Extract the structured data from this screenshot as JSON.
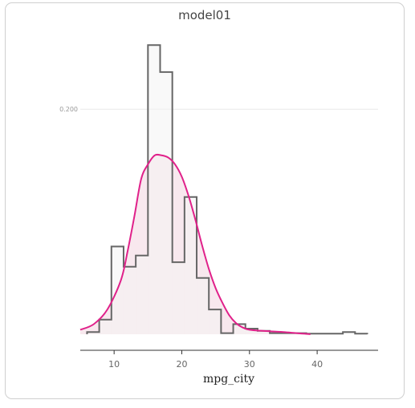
{
  "chart_data": {
    "type": "histogram+density",
    "title": "model01",
    "xlabel": "mpg_city",
    "ylabel": "",
    "xlim": [
      5,
      49
    ],
    "ylim": [
      0,
      0.26
    ],
    "x_ticks": [
      10,
      20,
      30,
      40
    ],
    "y_ticks": [
      0.2
    ],
    "y_tick_labels": [
      "0.200"
    ],
    "grid": true,
    "histogram": {
      "bin_edges": [
        6,
        7.8,
        9.6,
        11.4,
        13.2,
        15,
        16.8,
        18.6,
        20.4,
        22.2,
        24,
        25.8,
        27.6,
        29.4,
        31.2,
        33,
        34.8,
        36.6,
        38.4,
        40.2,
        42,
        43.8,
        45.6,
        47.4
      ],
      "densities": [
        0.002,
        0.013,
        0.078,
        0.06,
        0.07,
        0.257,
        0.233,
        0.064,
        0.122,
        0.05,
        0.022,
        0.001,
        0.009,
        0.005,
        0.003,
        0.001,
        0.001,
        0.001,
        0.0005,
        0.0005,
        0.0005,
        0.002,
        0.0005
      ],
      "stroke": "#666666",
      "fill": "#f4f4f4"
    },
    "density": {
      "x": [
        5,
        7,
        9,
        11,
        12,
        13,
        14,
        15,
        16,
        17,
        18,
        19,
        20,
        21,
        22,
        23,
        24,
        25,
        26,
        27,
        28,
        29,
        30,
        32,
        35,
        39
      ],
      "y": [
        0.004,
        0.009,
        0.022,
        0.048,
        0.074,
        0.105,
        0.138,
        0.151,
        0.159,
        0.159,
        0.157,
        0.151,
        0.14,
        0.123,
        0.102,
        0.079,
        0.058,
        0.041,
        0.028,
        0.017,
        0.01,
        0.006,
        0.004,
        0.003,
        0.002,
        0.0
      ],
      "stroke": "#e0218a",
      "fill": "#f7e6ec"
    },
    "axis_color": "#333333",
    "grid_color": "#e9e9e9"
  }
}
